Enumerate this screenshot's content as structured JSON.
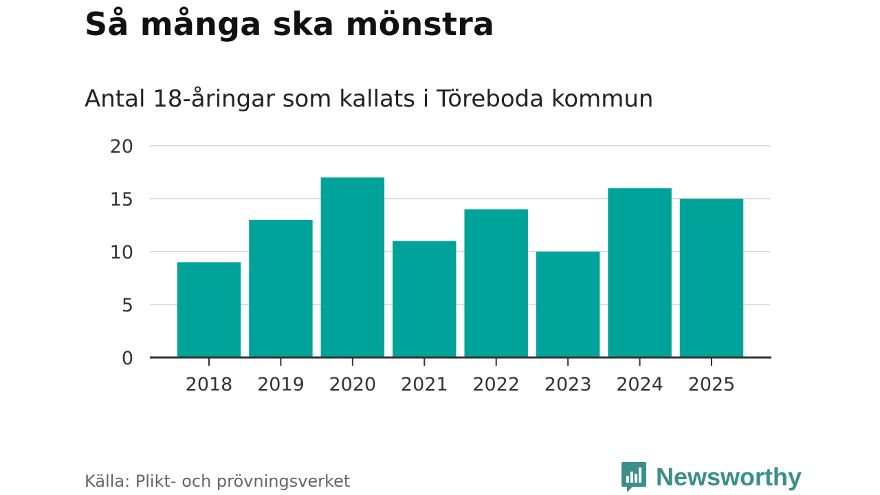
{
  "header": {
    "title": "Så många ska mönstra",
    "subtitle": "Antal 18-åringar som kallats i Töreboda kommun"
  },
  "footer": {
    "source": "Källa: Plikt- och prövningsverket",
    "brand": "Newsworthy",
    "brand_icon": "bar-chart-speech-bubble-icon"
  },
  "colors": {
    "bar": "#00a39a",
    "grid": "#dddddd",
    "axis": "#333333",
    "brand": "#3a8f8a"
  },
  "chart_data": {
    "type": "bar",
    "categories": [
      "2018",
      "2019",
      "2020",
      "2021",
      "2022",
      "2023",
      "2024",
      "2025"
    ],
    "values": [
      9,
      13,
      17,
      11,
      14,
      10,
      16,
      15
    ],
    "yticks": [
      "0",
      "5",
      "10",
      "15",
      "20"
    ],
    "ylim": [
      0,
      20
    ],
    "grid": true,
    "legend": "none"
  }
}
